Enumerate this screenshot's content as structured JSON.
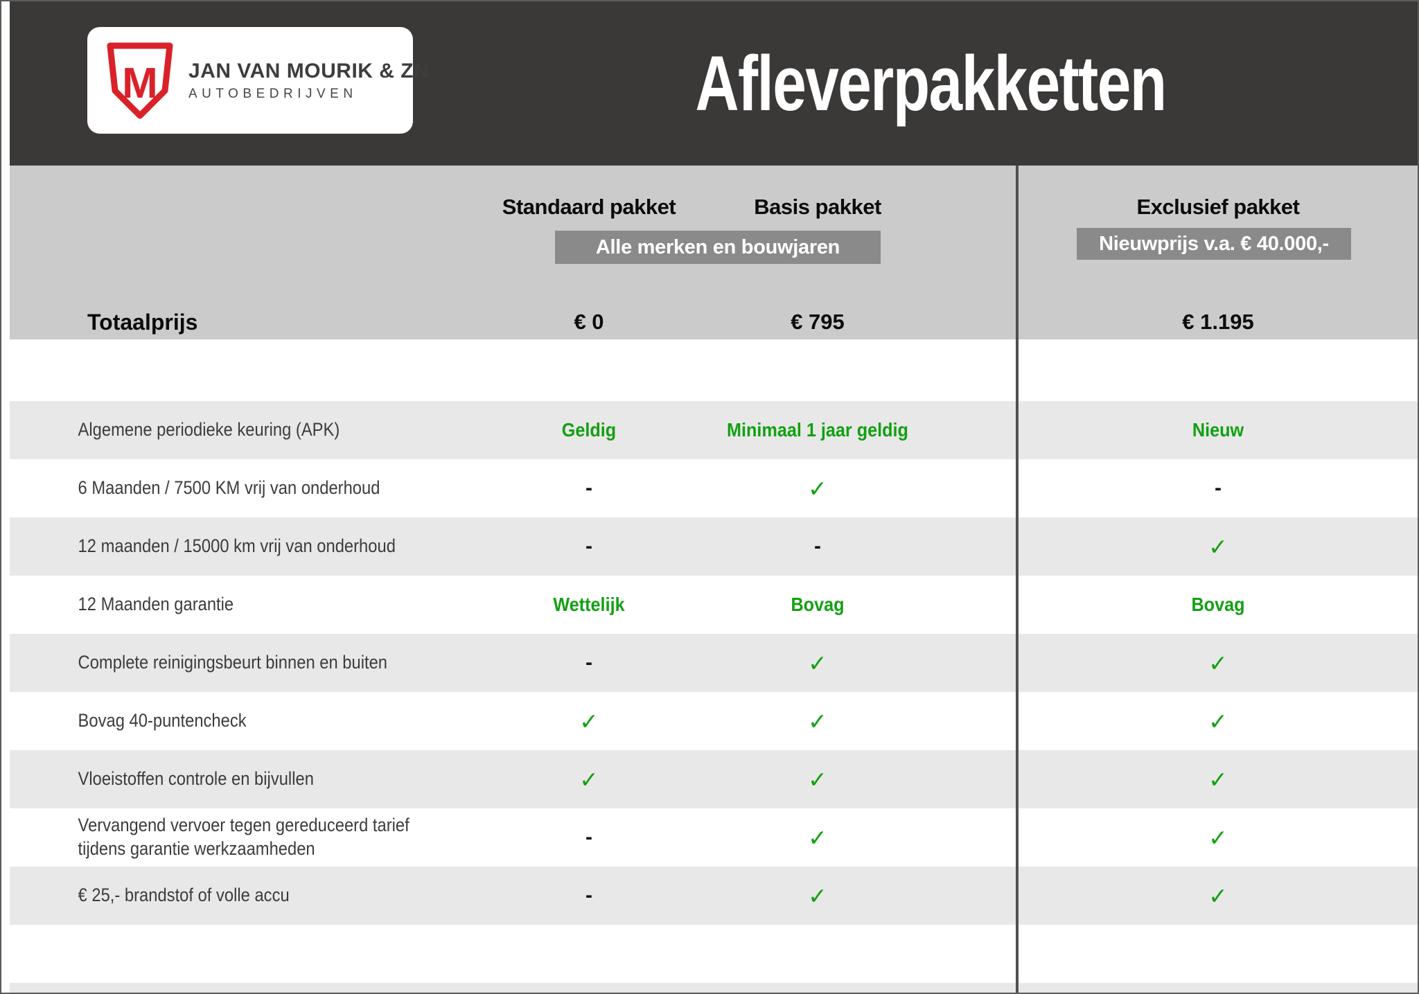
{
  "page": {
    "title": "Afleverpakketten"
  },
  "brand": {
    "monogram": "M",
    "name": "JAN VAN MOURIK & ZN",
    "subtitle": "AUTOBEDRIJVEN"
  },
  "columns": [
    {
      "id": "standaard",
      "label": "Standaard pakket"
    },
    {
      "id": "basis",
      "label": "Basis pakket"
    },
    {
      "id": "exclusief",
      "label": "Exclusief pakket"
    }
  ],
  "badges": {
    "left": "Alle merken en bouwjaren",
    "right": "Nieuwprijs v.a. € 40.000,-"
  },
  "totals": {
    "label": "Totaalprijs",
    "values": [
      "€ 0",
      "€ 795",
      "€ 1.195"
    ]
  },
  "rows": [
    {
      "label": "Algemene periodieke keuring (APK)",
      "values": [
        "Geldig",
        "Minimaal 1 jaar geldig",
        "Nieuw"
      ]
    },
    {
      "label": "6 Maanden / 7500 KM vrij van onderhoud",
      "values": [
        "-",
        "✓",
        "-"
      ]
    },
    {
      "label": "12 maanden / 15000 km vrij van onderhoud",
      "values": [
        "-",
        "-",
        "✓"
      ]
    },
    {
      "label": "12 Maanden  garantie",
      "values": [
        "Wettelijk",
        "Bovag",
        "Bovag"
      ]
    },
    {
      "label": "Complete reinigingsbeurt binnen en buiten",
      "values": [
        "-",
        "✓",
        "✓"
      ]
    },
    {
      "label": "Bovag 40-puntencheck",
      "values": [
        "✓",
        "✓",
        "✓"
      ]
    },
    {
      "label": "Vloeistoffen controle en bijvullen",
      "values": [
        "✓",
        "✓",
        "✓"
      ]
    },
    {
      "label": "Vervangend vervoer tegen gereduceerd tarief\ntijdens garantie werkzaamheden",
      "values": [
        "-",
        "✓",
        "✓"
      ]
    },
    {
      "label": "€ 25,- brandstof of  volle accu",
      "values": [
        "-",
        "✓",
        "✓"
      ]
    }
  ],
  "colors": {
    "header_bg": "#3b3938",
    "band_bg": "#cbcbcb",
    "badge_bg": "#8a8a8a",
    "row_alt_bg": "#e9e8e8",
    "green": "#12a012",
    "brand_red": "#da2129"
  }
}
